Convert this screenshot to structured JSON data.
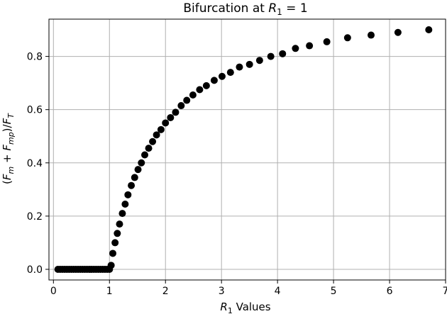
{
  "chart_data": {
    "type": "scatter",
    "title": "Bifurcation at R₁ = 1",
    "title_parts": {
      "prefix": "Bifurcation at ",
      "var": "R",
      "sub": "1",
      "suffix": " = 1"
    },
    "xlabel": "R₁ Values",
    "xlabel_parts": {
      "var": "R",
      "sub": "1",
      "suffix": " Values"
    },
    "ylabel": "(Fm + Fmp)/FT",
    "ylabel_parts": {
      "open": "(",
      "v1": "F",
      "s1": "m",
      "plus": " + ",
      "v2": "F",
      "s2": "mp",
      "close": ")/",
      "v3": "F",
      "s3": "T"
    },
    "xlim": [
      -0.08,
      7.0
    ],
    "ylim": [
      -0.04,
      0.94
    ],
    "xticks": [
      0,
      1,
      2,
      3,
      4,
      5,
      6,
      7
    ],
    "xtick_labels": [
      "0",
      "1",
      "2",
      "3",
      "4",
      "5",
      "6",
      "7"
    ],
    "yticks": [
      0.0,
      0.2,
      0.4,
      0.6,
      0.8
    ],
    "ytick_labels": [
      "0.0",
      "0.2",
      "0.4",
      "0.6",
      "0.8"
    ],
    "grid": true,
    "legend": "none",
    "marker_color": "#000000",
    "series": [
      {
        "x": [
          0.08,
          0.12,
          0.16,
          0.2,
          0.24,
          0.28,
          0.32,
          0.36,
          0.4,
          0.44,
          0.48,
          0.52,
          0.56,
          0.6,
          0.64,
          0.68,
          0.72,
          0.76,
          0.8,
          0.84,
          0.88,
          0.92,
          0.96,
          1.0,
          1.03,
          1.06,
          1.1,
          1.14,
          1.18,
          1.23,
          1.28,
          1.33,
          1.39,
          1.45,
          1.51,
          1.57,
          1.63,
          1.7,
          1.77,
          1.84,
          1.92,
          2.0,
          2.09,
          2.18,
          2.28,
          2.38,
          2.49,
          2.61,
          2.73,
          2.87,
          3.01,
          3.16,
          3.32,
          3.5,
          3.68,
          3.88,
          4.09,
          4.32,
          4.57,
          4.88,
          5.25,
          5.67,
          6.15,
          6.7
        ],
        "y": [
          0.0,
          0.0,
          0.0,
          0.0,
          0.0,
          0.0,
          0.0,
          0.0,
          0.0,
          0.0,
          0.0,
          0.0,
          0.0,
          0.0,
          0.0,
          0.0,
          0.0,
          0.0,
          0.0,
          0.0,
          0.0,
          0.0,
          0.0,
          0.0,
          0.015,
          0.06,
          0.1,
          0.135,
          0.17,
          0.21,
          0.245,
          0.28,
          0.315,
          0.345,
          0.375,
          0.4,
          0.43,
          0.455,
          0.48,
          0.505,
          0.525,
          0.55,
          0.57,
          0.59,
          0.615,
          0.635,
          0.655,
          0.675,
          0.69,
          0.71,
          0.725,
          0.74,
          0.76,
          0.77,
          0.785,
          0.8,
          0.81,
          0.83,
          0.84,
          0.855,
          0.87,
          0.88,
          0.89,
          0.9
        ]
      }
    ]
  }
}
